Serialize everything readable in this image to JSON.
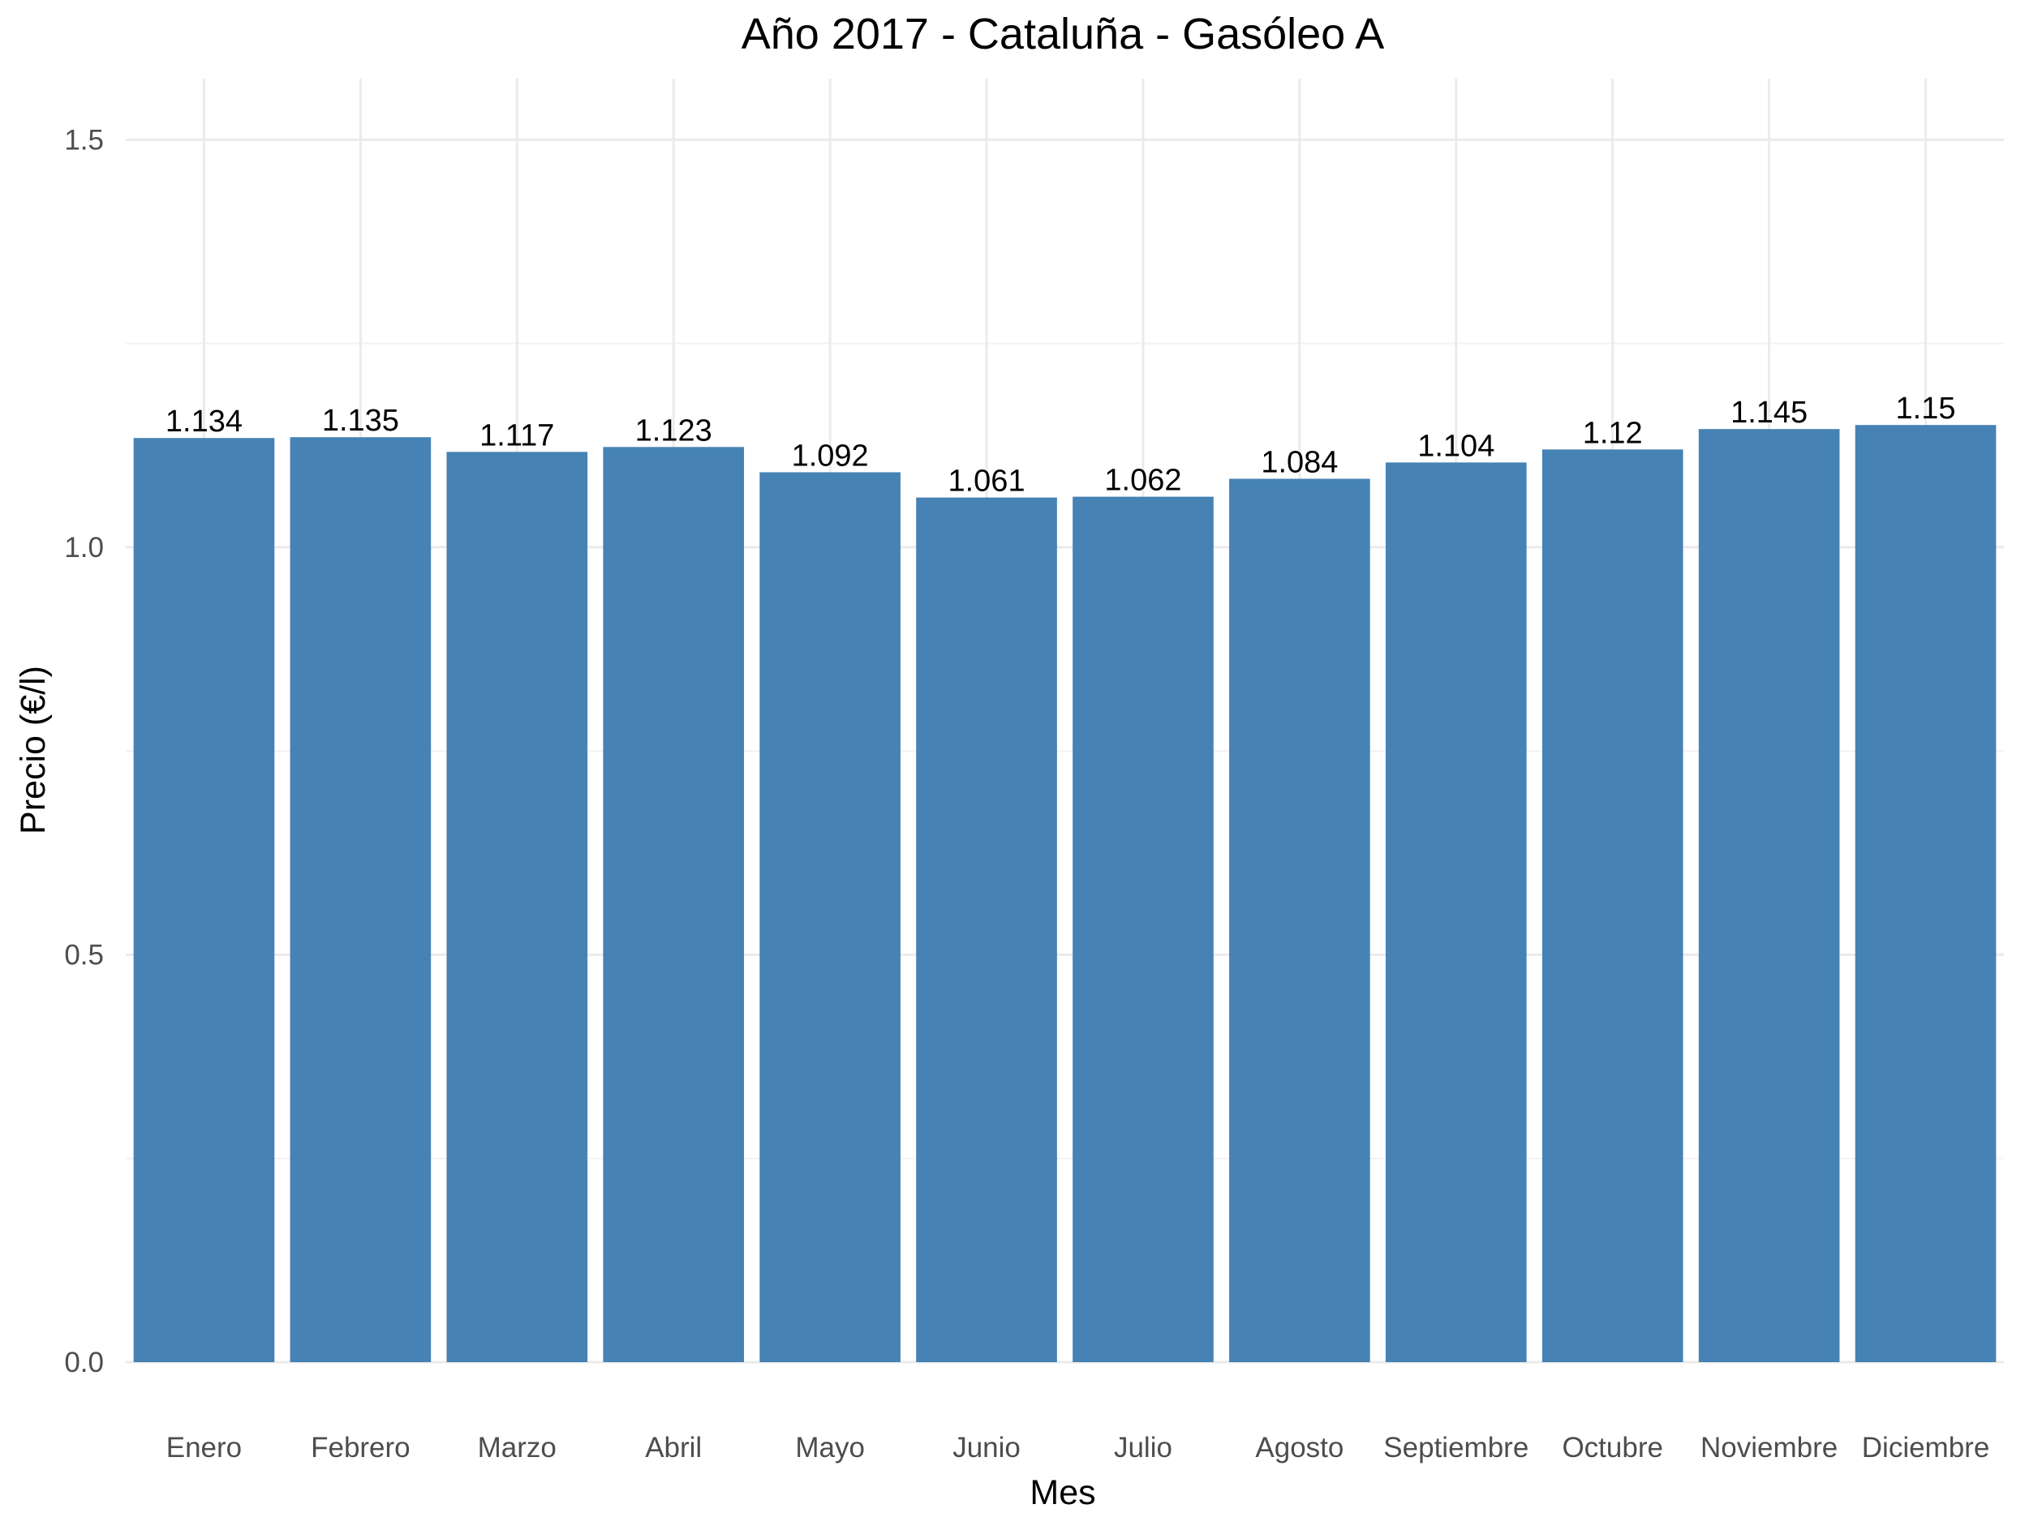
{
  "chart_data": {
    "type": "bar",
    "title": "Año 2017 - Cataluña - Gasóleo A",
    "xlabel": "Mes",
    "ylabel": "Precio (€/l)",
    "categories": [
      "Enero",
      "Febrero",
      "Marzo",
      "Abril",
      "Mayo",
      "Junio",
      "Julio",
      "Agosto",
      "Septiembre",
      "Octubre",
      "Noviembre",
      "Diciembre"
    ],
    "values": [
      1.134,
      1.135,
      1.117,
      1.123,
      1.092,
      1.061,
      1.062,
      1.084,
      1.104,
      1.12,
      1.145,
      1.15
    ],
    "value_labels": [
      "1.134",
      "1.135",
      "1.117",
      "1.123",
      "1.092",
      "1.061",
      "1.062",
      "1.084",
      "1.104",
      "1.12",
      "1.145",
      "1.15"
    ],
    "ylim": [
      0,
      1.575
    ],
    "yticks": [
      0,
      0.5,
      1,
      1.5
    ],
    "ytick_labels": [
      "0.0",
      "0.5",
      "1.0",
      "1.5"
    ],
    "grid": true,
    "legend": "none",
    "bar_color": "#4682b4"
  }
}
